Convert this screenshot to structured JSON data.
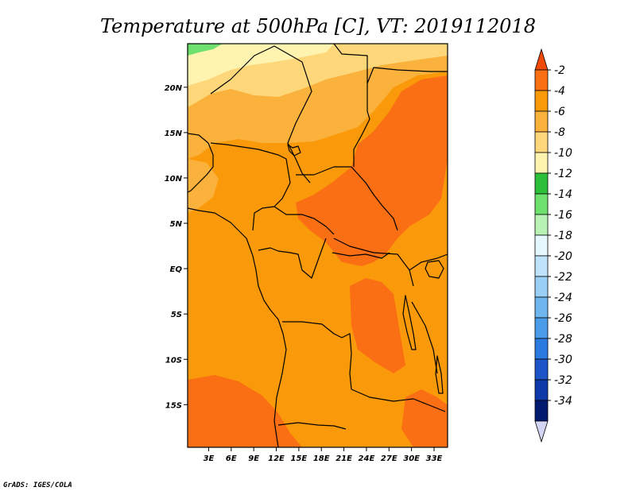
{
  "chart_data": {
    "type": "heatmap",
    "title": "Temperature at 500hPa [C], VT: 2019112018",
    "variable": "Temperature at 500hPa",
    "units": "C",
    "valid_time": "2019112018",
    "x_ticks": [
      "3E",
      "6E",
      "9E",
      "12E",
      "15E",
      "18E",
      "21E",
      "24E",
      "27E",
      "30E",
      "33E"
    ],
    "x_tick_values": [
      3,
      6,
      9,
      12,
      15,
      18,
      21,
      24,
      27,
      30,
      33
    ],
    "y_ticks": [
      "20N",
      "15N",
      "10N",
      "5N",
      "EQ",
      "5S",
      "10S",
      "15S"
    ],
    "y_tick_values": [
      20,
      15,
      10,
      5,
      0,
      -5,
      -10,
      -15
    ],
    "xlim": [
      0.2,
      34.8
    ],
    "ylim": [
      -19.7,
      24.8
    ],
    "colorbar": {
      "labels": [
        "-2",
        "-4",
        "-6",
        "-8",
        "-10",
        "-12",
        "-14",
        "-16",
        "-18",
        "-20",
        "-22",
        "-24",
        "-26",
        "-28",
        "-30",
        "-32",
        "-34"
      ],
      "colors": [
        "#f04a0a",
        "#fa6e14",
        "#fa9a0a",
        "#fbb23c",
        "#fdd77a",
        "#fef4b0",
        "#2ebf3a",
        "#6ee06e",
        "#b8f2b4",
        "#e6f8ff",
        "#bfe3fa",
        "#9ad0f5",
        "#6fb5ee",
        "#4a9ce8",
        "#2a7ae0",
        "#1d55c8",
        "#0e39a8",
        "#001a70",
        "#d4d4f4"
      ]
    },
    "fields": {
      "base_color": "#fa9a0a",
      "warm_color": "#fa6e14",
      "cool_color": "#fbb23c",
      "cooler_color": "#fdd77a",
      "coolest_color": "#fef4b0",
      "green_color": "#6ee06e"
    }
  },
  "credit": "GrADS: IGES/COLA"
}
